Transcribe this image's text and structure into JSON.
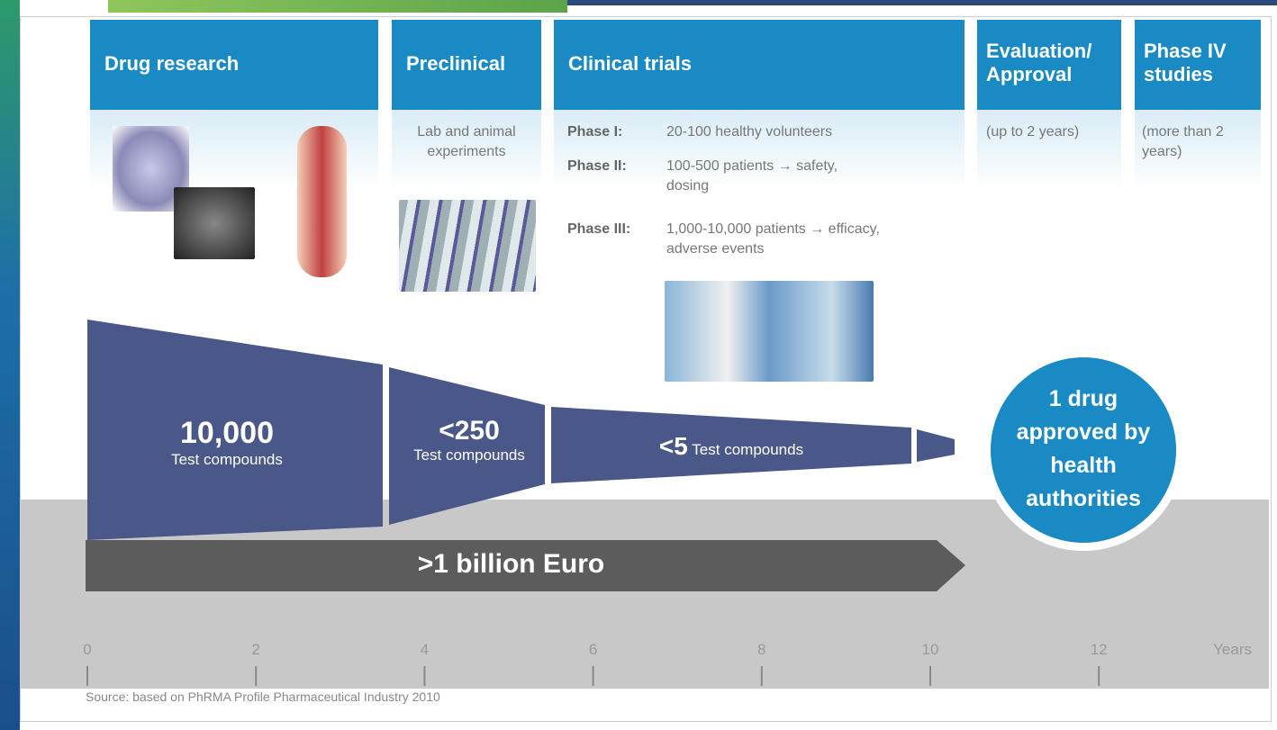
{
  "stages": [
    {
      "title": "Drug research"
    },
    {
      "title": "Preclinical",
      "description": "Lab and animal experiments"
    },
    {
      "title": "Clinical trials",
      "phases": [
        {
          "name": "Phase I:",
          "text": "20-100 healthy volunteers"
        },
        {
          "name": "Phase II:",
          "text": "100-500 patients → safety, dosing"
        },
        {
          "name": "Phase III:",
          "text": "1,000-10,000 patients → efficacy, adverse events"
        }
      ]
    },
    {
      "title": "Evaluation/ Approval",
      "description": "(up to 2 years)"
    },
    {
      "title": "Phase IV studies",
      "description": "(more than 2 years)"
    }
  ],
  "funnel": [
    {
      "count": "10,000",
      "label": "Test compounds"
    },
    {
      "count": "<250",
      "label": "Test compounds"
    },
    {
      "count": "<5",
      "label": "Test compounds"
    }
  ],
  "cost": ">1 billion Euro",
  "result": "1 drug approved by health authorities",
  "timeline": {
    "ticks": [
      0,
      2,
      4,
      6,
      8,
      10,
      12
    ],
    "unit": "Years"
  },
  "source": "Source: based on PhRMA Profile Pharmaceutical Industry 2010"
}
